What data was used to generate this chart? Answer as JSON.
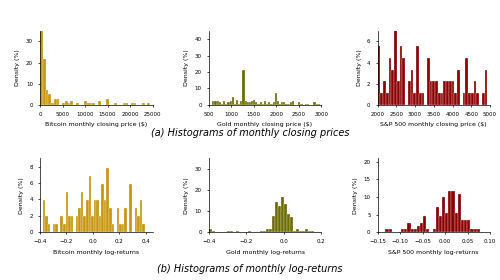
{
  "figure_title_a": "(a) Histograms of monthly closing prices",
  "figure_title_b": "(b) Histograms of monthly log-returns",
  "btc_price_xlabel": "Bitcoin monthly closing price ($)",
  "gold_price_xlabel": "Gold monthly closing price ($)",
  "sp500_price_xlabel": "S&P 500 monthly closing price ($)",
  "btc_log_xlabel": "Bitcoin monthly log-returns",
  "gold_log_xlabel": "Gold monthly log-returns",
  "sp500_log_xlabel": "S&P 500 monthly log-returns",
  "ylabel": "Density (%)",
  "btc_color": "#C8960C",
  "gold_color": "#6B6B00",
  "sp500_color": "#8B0000",
  "btc_price_xlim": [
    0,
    25000
  ],
  "btc_price_ylim": [
    0,
    35
  ],
  "btc_price_bins": 40,
  "gold_price_xlim": [
    500,
    3000
  ],
  "gold_price_ylim": [
    0,
    45
  ],
  "gold_price_bins": 50,
  "sp500_price_xlim": [
    2000,
    5000
  ],
  "sp500_price_ylim": [
    0,
    7
  ],
  "sp500_price_bins": 40,
  "btc_log_xlim": [
    -0.4,
    0.45
  ],
  "btc_log_ylim": [
    0,
    9
  ],
  "btc_log_bins": 40,
  "gold_log_xlim": [
    -0.4,
    0.2
  ],
  "gold_log_ylim": [
    0,
    35
  ],
  "gold_log_bins": 35,
  "sp500_log_xlim": [
    -0.15,
    0.1
  ],
  "sp500_log_ylim": [
    0,
    21
  ],
  "sp500_log_bins": 30,
  "label_fontsize": 4.5,
  "tick_fontsize": 4,
  "caption_fontsize": 7
}
